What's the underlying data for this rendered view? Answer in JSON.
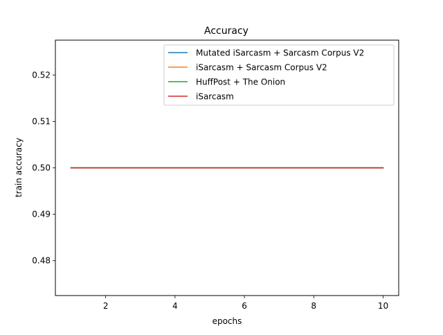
{
  "chart_data": {
    "type": "line",
    "title": "Accuracy",
    "xlabel": "epochs",
    "ylabel": "train accuracy",
    "xlim": [
      0.55,
      10.45
    ],
    "ylim": [
      0.4725,
      0.5275
    ],
    "xticks": [
      2,
      4,
      6,
      8,
      10
    ],
    "xtick_labels": [
      "2",
      "4",
      "6",
      "8",
      "10"
    ],
    "yticks": [
      0.48,
      0.49,
      0.5,
      0.51,
      0.52
    ],
    "ytick_labels": [
      "0.48",
      "0.49",
      "0.50",
      "0.51",
      "0.52"
    ],
    "grid": false,
    "legend_position": "top-right",
    "x": [
      1,
      2,
      3,
      4,
      5,
      6,
      7,
      8,
      9,
      10
    ],
    "series": [
      {
        "name": "Mutated iSarcasm + Sarcasm Corpus V2",
        "color": "#1f77b4",
        "values": [
          0.5,
          0.5,
          0.5,
          0.5,
          0.5,
          0.5,
          0.5,
          0.5,
          0.5,
          0.5
        ]
      },
      {
        "name": "iSarcasm + Sarcasm Corpus V2",
        "color": "#ff7f0e",
        "values": [
          0.5,
          0.5,
          0.5,
          0.5,
          0.5,
          0.5,
          0.5,
          0.5,
          0.5,
          0.5
        ]
      },
      {
        "name": "HuffPost + The Onion",
        "color": "#2ca02c",
        "values": [
          0.5,
          0.5,
          0.5,
          0.5,
          0.5,
          0.5,
          0.5,
          0.5,
          0.5,
          0.5
        ]
      },
      {
        "name": "iSarcasm",
        "color": "#d62728",
        "values": [
          0.5,
          0.5,
          0.5,
          0.5,
          0.5,
          0.5,
          0.5,
          0.5,
          0.5,
          0.5
        ]
      }
    ]
  }
}
